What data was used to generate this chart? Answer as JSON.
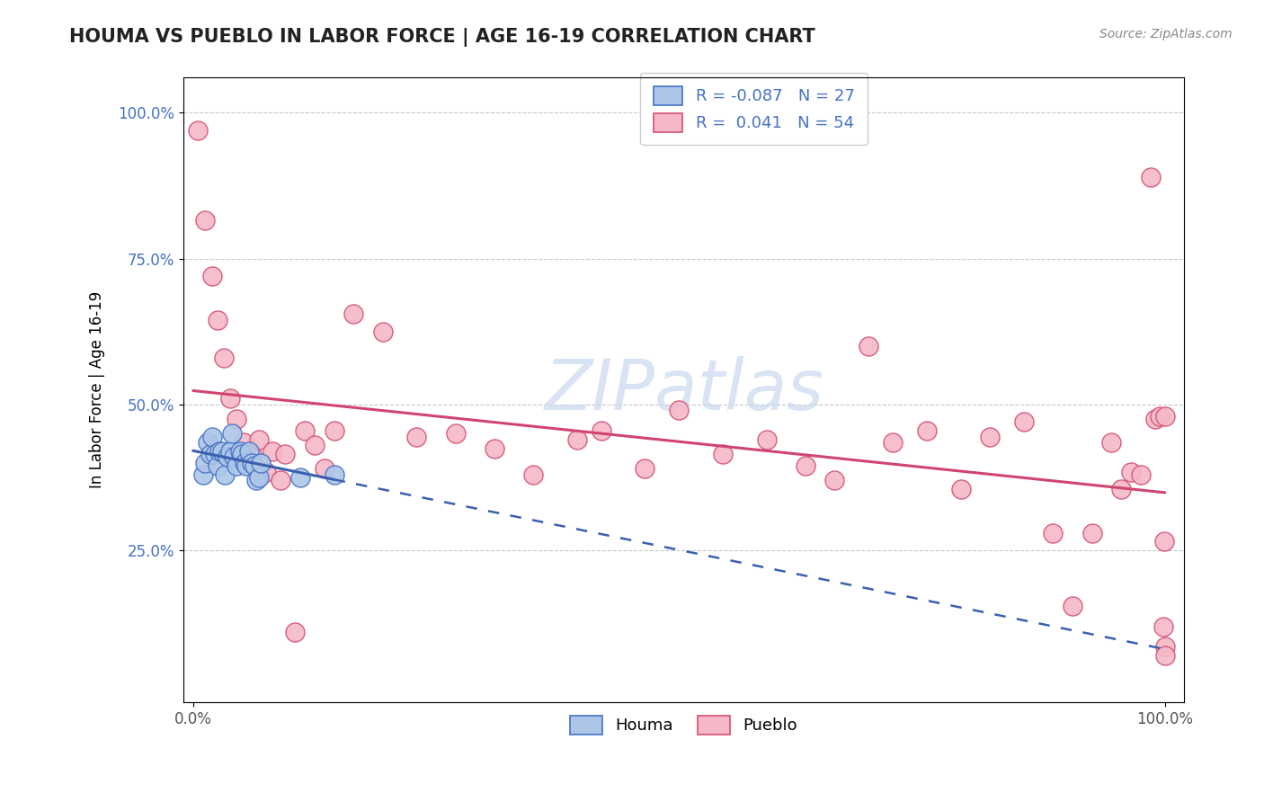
{
  "title": "HOUMA VS PUEBLO IN LABOR FORCE | AGE 16-19 CORRELATION CHART",
  "source_text": "Source: ZipAtlas.com",
  "ylabel": "In Labor Force | Age 16-19",
  "xlim": [
    0.0,
    1.0
  ],
  "ylim": [
    0.0,
    1.0
  ],
  "xtick_labels": [
    "0.0%",
    "100.0%"
  ],
  "ytick_labels": [
    "25.0%",
    "50.0%",
    "75.0%",
    "100.0%"
  ],
  "ytick_positions": [
    0.25,
    0.5,
    0.75,
    1.0
  ],
  "houma_R": "-0.087",
  "houma_N": "27",
  "pueblo_R": "0.041",
  "pueblo_N": "54",
  "houma_color": "#adc6e8",
  "pueblo_color": "#f5b8c8",
  "houma_edge_color": "#4472c4",
  "pueblo_edge_color": "#d45070",
  "houma_line_color": "#3a60b0",
  "pueblo_line_color": "#d04570",
  "background_color": "#ffffff",
  "watermark_color": "#c8d8ee",
  "grid_color": "#c8c8c8",
  "houma_x": [
    0.01,
    0.012,
    0.015,
    0.018,
    0.02,
    0.022,
    0.025,
    0.027,
    0.03,
    0.033,
    0.035,
    0.038,
    0.04,
    0.042,
    0.045,
    0.048,
    0.05,
    0.053,
    0.055,
    0.058,
    0.06,
    0.063,
    0.065,
    0.068,
    0.07,
    0.11,
    0.145
  ],
  "houma_y": [
    0.38,
    0.4,
    0.435,
    0.415,
    0.445,
    0.415,
    0.395,
    0.42,
    0.42,
    0.38,
    0.41,
    0.42,
    0.45,
    0.41,
    0.395,
    0.42,
    0.415,
    0.4,
    0.395,
    0.42,
    0.4,
    0.395,
    0.37,
    0.375,
    0.4,
    0.375,
    0.38
  ],
  "pueblo_x": [
    0.005,
    0.012,
    0.02,
    0.025,
    0.032,
    0.038,
    0.045,
    0.052,
    0.06,
    0.068,
    0.075,
    0.082,
    0.09,
    0.095,
    0.105,
    0.115,
    0.125,
    0.135,
    0.145,
    0.165,
    0.195,
    0.23,
    0.27,
    0.31,
    0.35,
    0.395,
    0.42,
    0.465,
    0.5,
    0.545,
    0.59,
    0.63,
    0.66,
    0.695,
    0.72,
    0.755,
    0.79,
    0.82,
    0.855,
    0.885,
    0.905,
    0.925,
    0.945,
    0.955,
    0.965,
    0.975,
    0.985,
    0.99,
    0.995,
    0.998,
    0.999,
    1.0,
    1.0,
    1.0
  ],
  "pueblo_y": [
    0.97,
    0.815,
    0.72,
    0.645,
    0.58,
    0.51,
    0.475,
    0.435,
    0.415,
    0.44,
    0.385,
    0.42,
    0.37,
    0.415,
    0.11,
    0.455,
    0.43,
    0.39,
    0.455,
    0.655,
    0.625,
    0.445,
    0.45,
    0.425,
    0.38,
    0.44,
    0.455,
    0.39,
    0.49,
    0.415,
    0.44,
    0.395,
    0.37,
    0.6,
    0.435,
    0.455,
    0.355,
    0.445,
    0.47,
    0.28,
    0.155,
    0.28,
    0.435,
    0.355,
    0.385,
    0.38,
    0.89,
    0.475,
    0.48,
    0.12,
    0.265,
    0.085,
    0.48,
    0.07
  ]
}
